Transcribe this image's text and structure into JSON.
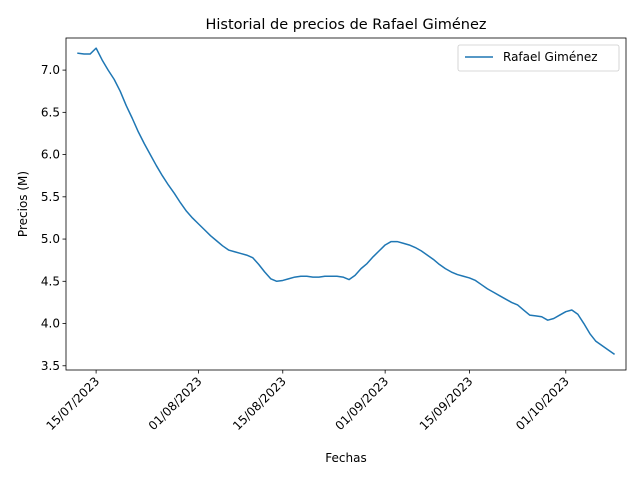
{
  "chart_data": {
    "type": "line",
    "title": "Historial de precios de Rafael Giménez",
    "xlabel": "Fechas",
    "ylabel": "Precios (M)",
    "x_start": "2023-07-12",
    "x_end": "2023-10-09",
    "xlim": [
      "2023-07-10",
      "2023-10-11"
    ],
    "ylim": [
      3.45,
      7.38
    ],
    "xticks": [
      {
        "date": "2023-07-15",
        "label": "15/07/2023"
      },
      {
        "date": "2023-08-01",
        "label": "01/08/2023"
      },
      {
        "date": "2023-08-15",
        "label": "15/08/2023"
      },
      {
        "date": "2023-09-01",
        "label": "01/09/2023"
      },
      {
        "date": "2023-09-15",
        "label": "15/09/2023"
      },
      {
        "date": "2023-10-01",
        "label": "01/10/2023"
      }
    ],
    "yticks": [
      3.5,
      4.0,
      4.5,
      5.0,
      5.5,
      6.0,
      6.5,
      7.0
    ],
    "ytick_labels": [
      "3.5",
      "4.0",
      "4.5",
      "5.0",
      "5.5",
      "6.0",
      "6.5",
      "7.0"
    ],
    "legend": {
      "position": "upper-right"
    },
    "grid": false,
    "series": [
      {
        "name": "Rafael Giménez",
        "color": "#1f77b4",
        "values": [
          7.2,
          7.19,
          7.19,
          7.26,
          7.12,
          7.0,
          6.89,
          6.75,
          6.58,
          6.43,
          6.27,
          6.13,
          6.0,
          5.87,
          5.75,
          5.64,
          5.54,
          5.43,
          5.33,
          5.25,
          5.18,
          5.11,
          5.04,
          4.98,
          4.92,
          4.87,
          4.85,
          4.83,
          4.81,
          4.78,
          4.7,
          4.61,
          4.53,
          4.5,
          4.51,
          4.53,
          4.55,
          4.56,
          4.56,
          4.55,
          4.55,
          4.56,
          4.56,
          4.56,
          4.55,
          4.52,
          4.57,
          4.65,
          4.71,
          4.79,
          4.86,
          4.93,
          4.97,
          4.97,
          4.95,
          4.93,
          4.9,
          4.86,
          4.81,
          4.76,
          4.7,
          4.65,
          4.61,
          4.58,
          4.56,
          4.54,
          4.51,
          4.46,
          4.41,
          4.37,
          4.33,
          4.29,
          4.25,
          4.22,
          4.16,
          4.1,
          4.09,
          4.08,
          4.04,
          4.06,
          4.1,
          4.14,
          4.16,
          4.11,
          4.0,
          3.88,
          3.79,
          3.74,
          3.69,
          3.64
        ]
      }
    ]
  }
}
